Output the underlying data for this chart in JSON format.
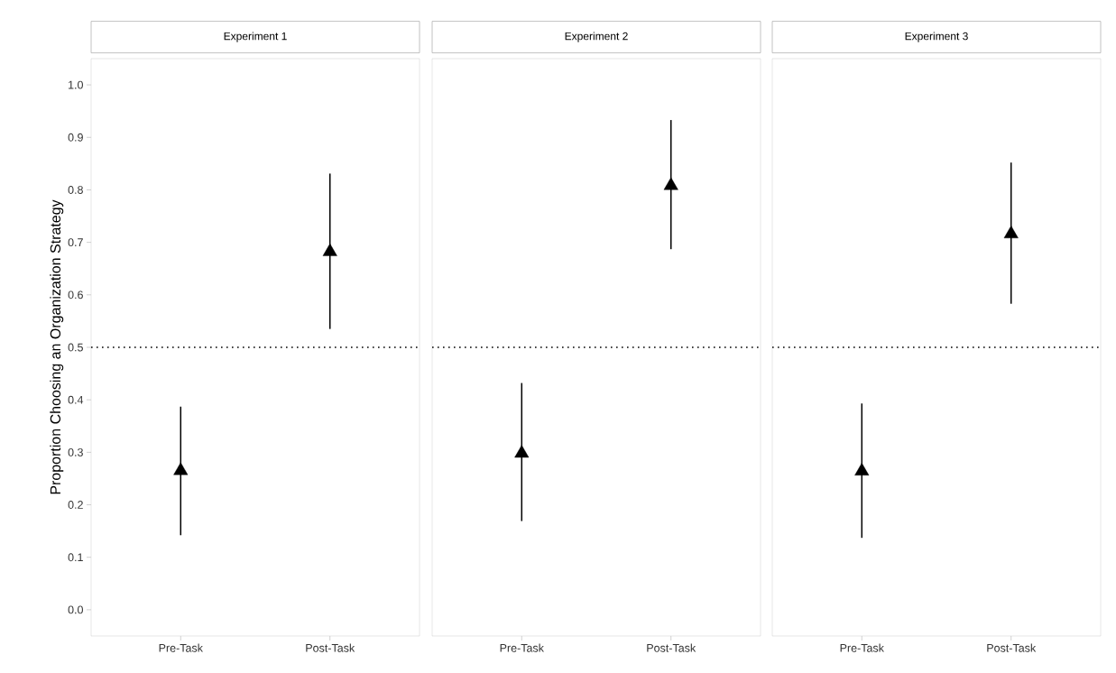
{
  "chart_data": [
    {
      "type": "scatter",
      "title": "Experiment 1",
      "ylabel": "Proportion Choosing an Organization Strategy",
      "categories": [
        "Pre-Task",
        "Post-Task"
      ],
      "values": [
        0.265,
        0.682
      ],
      "errors": [
        [
          0.142,
          0.387
        ],
        [
          0.535,
          0.831
        ]
      ],
      "color": "#000000",
      "marker": "triangle",
      "ylim": [
        -0.05,
        1.05
      ],
      "yticks": [
        {
          "value": 0,
          "label": "0.0"
        },
        0.1,
        0.2,
        0.3,
        0.4,
        0.5,
        0.6,
        0.7,
        0.8,
        0.9,
        {
          "value": 1,
          "label": "1.0"
        }
      ],
      "ref_lines": [
        {
          "axis": "y",
          "value": 0.5,
          "line_style": "dotted"
        }
      ],
      "grid": false
    },
    {
      "type": "scatter",
      "title": "Experiment 2",
      "categories": [
        "Pre-Task",
        "Post-Task"
      ],
      "values": [
        0.298,
        0.808
      ],
      "errors": [
        [
          0.169,
          0.432
        ],
        [
          0.687,
          0.933
        ]
      ],
      "color": "#000000",
      "marker": "triangle",
      "ylim": [
        -0.05,
        1.05
      ],
      "tick_labels": "x",
      "ref_lines": [
        {
          "axis": "y",
          "value": 0.5,
          "line_style": "dotted"
        }
      ],
      "grid": false
    },
    {
      "type": "scatter",
      "title": "Experiment 3",
      "categories": [
        "Pre-Task",
        "Post-Task"
      ],
      "values": [
        0.264,
        0.716
      ],
      "errors": [
        [
          0.137,
          0.393
        ],
        [
          0.583,
          0.852
        ]
      ],
      "color": "#000000",
      "marker": "triangle",
      "ylim": [
        -0.05,
        1.05
      ],
      "tick_labels": "x",
      "ref_lines": [
        {
          "axis": "y",
          "value": 0.5,
          "line_style": "dotted"
        }
      ],
      "grid": false
    }
  ]
}
